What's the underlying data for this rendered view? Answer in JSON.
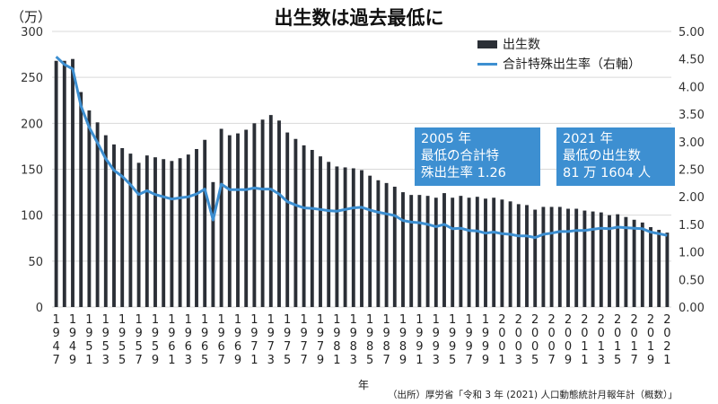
{
  "title": "出生数は過去最低に",
  "left_unit": "（万）",
  "x_unit": "年",
  "source": "（出所）厚労省「令和 3 年 (2021) 人口動態統計月報年計（概数）」",
  "legend": {
    "bar_label": "出生数",
    "line_label": "合計特殊出生率（右軸）"
  },
  "callouts": [
    {
      "text": "2005 年\n最低の合計特\n殊出生率 1.26"
    },
    {
      "text": "2021 年\n最低の出生数\n81 万 1604 人"
    }
  ],
  "colors": {
    "bar": "#2b2f36",
    "line": "#3d8fd1",
    "callout_bg": "#3d8fd1",
    "grid": "#d9d9d9"
  },
  "chart_data": {
    "type": "bar",
    "title": "出生数は過去最低に",
    "y_label": "（万）",
    "y2_label": "",
    "x_label": "年",
    "ylim": [
      0,
      300
    ],
    "y_ticks": [
      0,
      50,
      100,
      150,
      200,
      250,
      300
    ],
    "y2lim": [
      0.0,
      5.0
    ],
    "y2_ticks": [
      "0.00",
      "0.50",
      "1.00",
      "1.50",
      "2.00",
      "2.50",
      "3.00",
      "3.50",
      "4.00",
      "4.50",
      "5.00"
    ],
    "grid": true,
    "legend_position": "top-right",
    "x": [
      1947,
      1948,
      1949,
      1950,
      1951,
      1952,
      1953,
      1954,
      1955,
      1956,
      1957,
      1958,
      1959,
      1960,
      1961,
      1962,
      1963,
      1964,
      1965,
      1966,
      1967,
      1968,
      1969,
      1970,
      1971,
      1972,
      1973,
      1974,
      1975,
      1976,
      1977,
      1978,
      1979,
      1980,
      1981,
      1982,
      1983,
      1984,
      1985,
      1986,
      1987,
      1988,
      1989,
      1990,
      1991,
      1992,
      1993,
      1994,
      1995,
      1996,
      1997,
      1998,
      1999,
      2000,
      2001,
      2002,
      2003,
      2004,
      2005,
      2006,
      2007,
      2008,
      2009,
      2010,
      2011,
      2012,
      2013,
      2014,
      2015,
      2016,
      2017,
      2018,
      2019,
      2020,
      2021
    ],
    "x_tick_labels": [
      "1947",
      "1949",
      "1951",
      "1953",
      "1955",
      "1957",
      "1959",
      "1961",
      "1963",
      "1965",
      "1967",
      "1969",
      "1971",
      "1973",
      "1975",
      "1977",
      "1979",
      "1981",
      "1983",
      "1985",
      "1987",
      "1989",
      "1991",
      "1993",
      "1995",
      "1997",
      "1999",
      "2001",
      "2003",
      "2005",
      "2007",
      "2009",
      "2011",
      "2013",
      "2015",
      "2017",
      "2019",
      "2021"
    ],
    "series": [
      {
        "name": "出生数",
        "axis": "left",
        "type": "bar",
        "values": [
          268,
          268,
          270,
          234,
          214,
          201,
          187,
          177,
          173,
          167,
          157,
          165,
          163,
          161,
          159,
          162,
          166,
          172,
          182,
          136,
          194,
          187,
          189,
          193,
          200,
          204,
          209,
          203,
          190,
          183,
          176,
          171,
          164,
          158,
          153,
          152,
          151,
          149,
          143,
          138,
          135,
          131,
          125,
          122,
          122,
          121,
          119,
          124,
          119,
          121,
          119,
          120,
          118,
          119,
          117,
          115,
          112,
          111,
          106,
          109,
          109,
          109,
          107,
          107,
          105,
          104,
          103,
          100,
          101,
          98,
          95,
          92,
          87,
          84,
          81
        ]
      },
      {
        "name": "合計特殊出生率（右軸）",
        "axis": "right",
        "type": "line",
        "values": [
          4.54,
          4.4,
          4.32,
          3.65,
          3.26,
          2.98,
          2.69,
          2.48,
          2.37,
          2.22,
          2.04,
          2.11,
          2.04,
          2.0,
          1.96,
          1.98,
          2.0,
          2.05,
          2.14,
          1.58,
          2.23,
          2.13,
          2.13,
          2.13,
          2.16,
          2.14,
          2.14,
          2.05,
          1.91,
          1.85,
          1.8,
          1.79,
          1.77,
          1.75,
          1.74,
          1.77,
          1.8,
          1.81,
          1.76,
          1.72,
          1.69,
          1.66,
          1.57,
          1.54,
          1.53,
          1.5,
          1.46,
          1.5,
          1.42,
          1.43,
          1.39,
          1.38,
          1.34,
          1.36,
          1.33,
          1.32,
          1.29,
          1.29,
          1.26,
          1.32,
          1.34,
          1.37,
          1.37,
          1.39,
          1.39,
          1.41,
          1.43,
          1.42,
          1.45,
          1.44,
          1.43,
          1.42,
          1.36,
          1.33,
          1.3
        ]
      }
    ]
  }
}
